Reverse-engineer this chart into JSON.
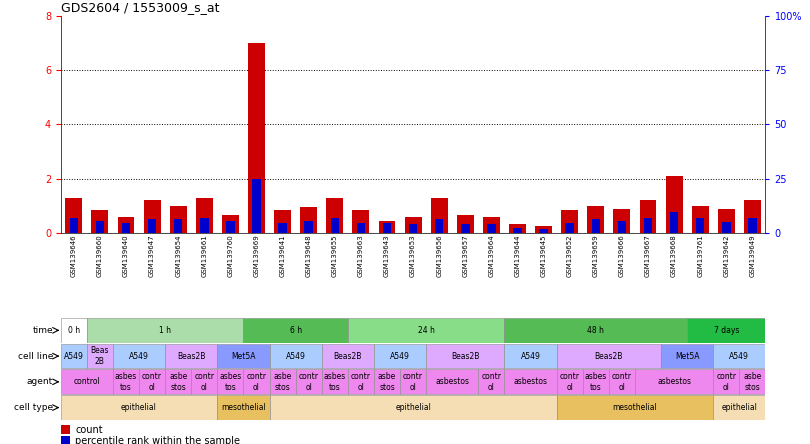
{
  "title": "GDS2604 / 1553009_s_at",
  "samples": [
    "GSM139646",
    "GSM139660",
    "GSM139640",
    "GSM139647",
    "GSM139654",
    "GSM139661",
    "GSM139760",
    "GSM139669",
    "GSM139641",
    "GSM139648",
    "GSM139655",
    "GSM139663",
    "GSM139643",
    "GSM139653",
    "GSM139656",
    "GSM139657",
    "GSM139664",
    "GSM139644",
    "GSM139645",
    "GSM139652",
    "GSM139659",
    "GSM139666",
    "GSM139667",
    "GSM139668",
    "GSM139761",
    "GSM139642",
    "GSM139649"
  ],
  "red_values": [
    1.3,
    0.85,
    0.6,
    1.2,
    1.0,
    1.3,
    0.65,
    7.0,
    0.85,
    0.95,
    1.3,
    0.85,
    0.45,
    0.6,
    1.3,
    0.65,
    0.6,
    0.35,
    0.25,
    0.85,
    1.0,
    0.9,
    1.2,
    2.1,
    1.0,
    0.9,
    1.2
  ],
  "blue_values_pct": [
    7.0,
    5.5,
    4.5,
    6.5,
    6.5,
    7.0,
    5.5,
    25.0,
    4.5,
    5.5,
    7.0,
    4.5,
    4.5,
    4.0,
    6.5,
    4.0,
    4.0,
    2.5,
    2.0,
    4.5,
    6.5,
    5.5,
    7.0,
    9.5,
    7.0,
    5.0,
    7.0
  ],
  "ylim_left": [
    0,
    8
  ],
  "ylim_right": [
    0,
    100
  ],
  "yticks_left": [
    0,
    2,
    4,
    6,
    8
  ],
  "yticks_right": [
    0,
    25,
    50,
    75,
    100
  ],
  "ytick_labels_right": [
    "0",
    "25",
    "50",
    "75",
    "100%"
  ],
  "time_groups": [
    {
      "label": "0 h",
      "start": 0,
      "end": 1,
      "color": "#ffffff"
    },
    {
      "label": "1 h",
      "start": 1,
      "end": 7,
      "color": "#aaddaa"
    },
    {
      "label": "6 h",
      "start": 7,
      "end": 11,
      "color": "#55bb55"
    },
    {
      "label": "24 h",
      "start": 11,
      "end": 17,
      "color": "#88dd88"
    },
    {
      "label": "48 h",
      "start": 17,
      "end": 24,
      "color": "#55bb55"
    },
    {
      "label": "7 days",
      "start": 24,
      "end": 27,
      "color": "#22bb44"
    }
  ],
  "cellline_groups": [
    {
      "label": "A549",
      "start": 0,
      "end": 1,
      "color": "#aaccff"
    },
    {
      "label": "Beas\n2B",
      "start": 1,
      "end": 2,
      "color": "#ddaaff"
    },
    {
      "label": "A549",
      "start": 2,
      "end": 4,
      "color": "#aaccff"
    },
    {
      "label": "Beas2B",
      "start": 4,
      "end": 6,
      "color": "#ddaaff"
    },
    {
      "label": "Met5A",
      "start": 6,
      "end": 8,
      "color": "#8899ff"
    },
    {
      "label": "A549",
      "start": 8,
      "end": 10,
      "color": "#aaccff"
    },
    {
      "label": "Beas2B",
      "start": 10,
      "end": 12,
      "color": "#ddaaff"
    },
    {
      "label": "A549",
      "start": 12,
      "end": 14,
      "color": "#aaccff"
    },
    {
      "label": "Beas2B",
      "start": 14,
      "end": 17,
      "color": "#ddaaff"
    },
    {
      "label": "A549",
      "start": 17,
      "end": 19,
      "color": "#aaccff"
    },
    {
      "label": "Beas2B",
      "start": 19,
      "end": 23,
      "color": "#ddaaff"
    },
    {
      "label": "Met5A",
      "start": 23,
      "end": 25,
      "color": "#8899ff"
    },
    {
      "label": "A549",
      "start": 25,
      "end": 27,
      "color": "#aaccff"
    }
  ],
  "agent_groups": [
    {
      "label": "control",
      "start": 0,
      "end": 2,
      "color": "#ee88ee"
    },
    {
      "label": "asbes\ntos",
      "start": 2,
      "end": 3,
      "color": "#ee88ee"
    },
    {
      "label": "contr\nol",
      "start": 3,
      "end": 4,
      "color": "#ee88ee"
    },
    {
      "label": "asbe\nstos",
      "start": 4,
      "end": 5,
      "color": "#ee88ee"
    },
    {
      "label": "contr\nol",
      "start": 5,
      "end": 6,
      "color": "#ee88ee"
    },
    {
      "label": "asbes\ntos",
      "start": 6,
      "end": 7,
      "color": "#ee88ee"
    },
    {
      "label": "contr\nol",
      "start": 7,
      "end": 8,
      "color": "#ee88ee"
    },
    {
      "label": "asbe\nstos",
      "start": 8,
      "end": 9,
      "color": "#ee88ee"
    },
    {
      "label": "contr\nol",
      "start": 9,
      "end": 10,
      "color": "#ee88ee"
    },
    {
      "label": "asbes\ntos",
      "start": 10,
      "end": 11,
      "color": "#ee88ee"
    },
    {
      "label": "contr\nol",
      "start": 11,
      "end": 12,
      "color": "#ee88ee"
    },
    {
      "label": "asbe\nstos",
      "start": 12,
      "end": 13,
      "color": "#ee88ee"
    },
    {
      "label": "contr\nol",
      "start": 13,
      "end": 14,
      "color": "#ee88ee"
    },
    {
      "label": "asbestos",
      "start": 14,
      "end": 16,
      "color": "#ee88ee"
    },
    {
      "label": "contr\nol",
      "start": 16,
      "end": 17,
      "color": "#ee88ee"
    },
    {
      "label": "asbestos",
      "start": 17,
      "end": 19,
      "color": "#ee88ee"
    },
    {
      "label": "contr\nol",
      "start": 19,
      "end": 20,
      "color": "#ee88ee"
    },
    {
      "label": "asbes\ntos",
      "start": 20,
      "end": 21,
      "color": "#ee88ee"
    },
    {
      "label": "contr\nol",
      "start": 21,
      "end": 22,
      "color": "#ee88ee"
    },
    {
      "label": "asbestos",
      "start": 22,
      "end": 25,
      "color": "#ee88ee"
    },
    {
      "label": "contr\nol",
      "start": 25,
      "end": 26,
      "color": "#ee88ee"
    },
    {
      "label": "asbe\nstos",
      "start": 26,
      "end": 27,
      "color": "#ee88ee"
    }
  ],
  "celltype_groups": [
    {
      "label": "epithelial",
      "start": 0,
      "end": 6,
      "color": "#f5deb3"
    },
    {
      "label": "mesothelial",
      "start": 6,
      "end": 8,
      "color": "#e8c060"
    },
    {
      "label": "epithelial",
      "start": 8,
      "end": 19,
      "color": "#f5deb3"
    },
    {
      "label": "mesothelial",
      "start": 19,
      "end": 25,
      "color": "#e8c060"
    },
    {
      "label": "epithelial",
      "start": 25,
      "end": 27,
      "color": "#f5deb3"
    }
  ],
  "bar_color_red": "#cc0000",
  "bar_color_blue": "#0000cc",
  "background_color": "#ffffff"
}
